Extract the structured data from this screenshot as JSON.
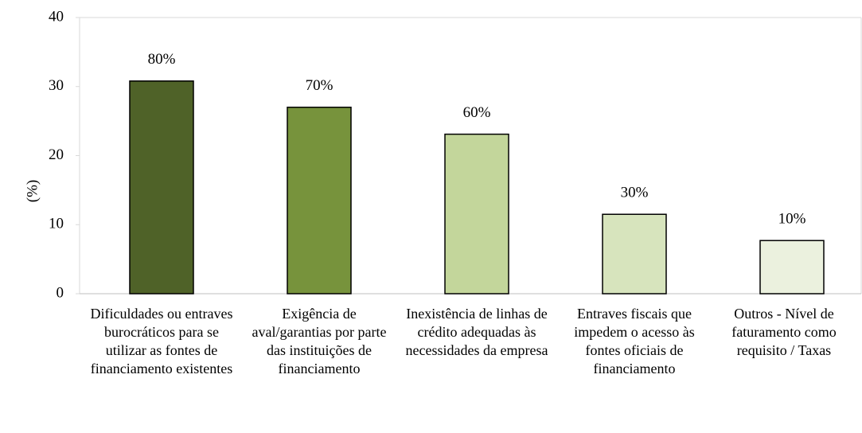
{
  "chart_data": {
    "type": "bar",
    "y_label": "(%)",
    "categories": [
      "Dificuldades ou entraves burocráticos para se utilizar as fontes de financiamento existentes",
      "Exigência de aval/garantias por parte das instituições de financiamento",
      "Inexistência de linhas de crédito adequadas às necessidades da empresa",
      "Entraves fiscais que impedem o acesso às fontes oficiais de financiamento",
      "Outros - Nível de faturamento como requisito / Taxas"
    ],
    "values": [
      30.8,
      27,
      23.1,
      11.5,
      7.7
    ],
    "annotations": [
      "80%",
      "70%",
      "60%",
      "30%",
      "10%"
    ],
    "colors": [
      "#4f6228",
      "#77933c",
      "#c3d69b",
      "#d7e4bd",
      "#ebf1de"
    ],
    "ylim": [
      0,
      40
    ],
    "yticks": [
      0,
      10,
      20,
      30,
      40
    ],
    "grid": false
  }
}
